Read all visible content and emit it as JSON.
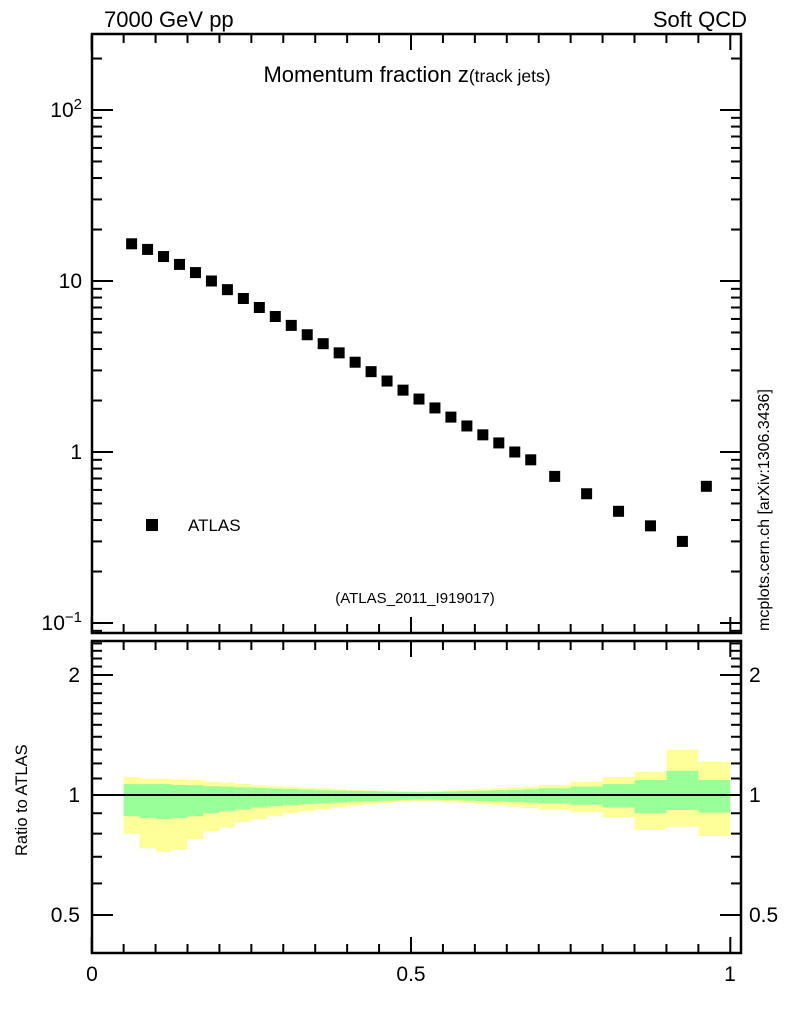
{
  "header": {
    "left": "7000 GeV pp",
    "right": "Soft QCD"
  },
  "title": {
    "main": "Momentum fraction z",
    "paren": "(track jets)"
  },
  "legend": {
    "label": "ATLAS",
    "marker": "filled-square",
    "marker_color": "#000000"
  },
  "annotations": {
    "analysis_id": "(ATLAS_2011_I919017)",
    "watermark": "mcplots.cern.ch [arXiv:1306.3436]"
  },
  "axes": {
    "x": {
      "min": 0,
      "max": 1,
      "tick_values": [
        0,
        0.5,
        1
      ],
      "tick_labels": [
        "0",
        "0.5",
        "1"
      ],
      "minor_step": 0.05
    },
    "main_y": {
      "scale": "log",
      "tick_values": [
        100,
        10,
        1,
        0.1
      ],
      "tick_labels": [
        "10^2",
        "10",
        "1",
        "10^-1"
      ]
    },
    "ratio_y": {
      "scale": "log",
      "title": "Ratio to ATLAS",
      "tick_values": [
        2,
        1,
        0.5
      ],
      "tick_labels": [
        "2",
        "1",
        "0.5"
      ]
    }
  },
  "colors": {
    "background": "#ffffff",
    "frame": "#000000",
    "marker": "#000000",
    "band_outer": "#ffff99",
    "band_inner": "#99ff99",
    "watermark_text": "#8f8f8f",
    "analysis_text": "#b3b3b3"
  },
  "chart_data": [
    {
      "panel": "main",
      "type": "scatter",
      "title": "Momentum fraction z(track jets)",
      "y_scale": "log",
      "xlim": [
        0,
        1.017
      ],
      "ylim": [
        0.087,
        280
      ],
      "series": [
        {
          "name": "ATLAS",
          "marker": "filled-square",
          "color": "#000000",
          "x": [
            0.0625,
            0.0875,
            0.1125,
            0.1375,
            0.1625,
            0.1875,
            0.2125,
            0.2375,
            0.2625,
            0.2875,
            0.3125,
            0.3375,
            0.3625,
            0.3875,
            0.4125,
            0.4375,
            0.4625,
            0.4875,
            0.5125,
            0.5375,
            0.5625,
            0.5875,
            0.6125,
            0.6375,
            0.6625,
            0.6875,
            0.725,
            0.775,
            0.825,
            0.875,
            0.925,
            0.9625
          ],
          "y": [
            16.5,
            15.3,
            13.9,
            12.5,
            11.2,
            10.0,
            8.9,
            7.9,
            7.0,
            6.2,
            5.5,
            4.85,
            4.3,
            3.8,
            3.35,
            2.95,
            2.6,
            2.3,
            2.04,
            1.81,
            1.6,
            1.42,
            1.26,
            1.13,
            1.0,
            0.9,
            0.72,
            0.57,
            0.45,
            0.37,
            0.3,
            0.63
          ]
        }
      ]
    },
    {
      "panel": "ratio",
      "type": "area",
      "ylabel": "Ratio to ATLAS",
      "y_scale": "log",
      "ylim": [
        0.4,
        2.43
      ],
      "reference_line": 1,
      "bin_edges": [
        0.05,
        0.075,
        0.1,
        0.125,
        0.15,
        0.175,
        0.2,
        0.225,
        0.25,
        0.275,
        0.3,
        0.325,
        0.35,
        0.375,
        0.4,
        0.425,
        0.45,
        0.475,
        0.5,
        0.525,
        0.55,
        0.575,
        0.6,
        0.625,
        0.65,
        0.675,
        0.7,
        0.75,
        0.8,
        0.85,
        0.9,
        0.95,
        1.0
      ],
      "bands": {
        "outer": {
          "color": "#ffff99",
          "hi": [
            1.11,
            1.1,
            1.1,
            1.095,
            1.09,
            1.08,
            1.075,
            1.065,
            1.058,
            1.052,
            1.048,
            1.044,
            1.04,
            1.035,
            1.03,
            1.028,
            1.025,
            1.023,
            1.022,
            1.024,
            1.028,
            1.032,
            1.036,
            1.04,
            1.045,
            1.05,
            1.06,
            1.08,
            1.11,
            1.144,
            1.3,
            1.21
          ],
          "lo": [
            0.8,
            0.735,
            0.72,
            0.73,
            0.775,
            0.81,
            0.83,
            0.855,
            0.87,
            0.885,
            0.9,
            0.91,
            0.92,
            0.93,
            0.94,
            0.947,
            0.955,
            0.962,
            0.966,
            0.965,
            0.96,
            0.955,
            0.948,
            0.942,
            0.935,
            0.928,
            0.918,
            0.905,
            0.88,
            0.817,
            0.833,
            0.789
          ]
        },
        "inner": {
          "color": "#99ff99",
          "hi": [
            1.065,
            1.065,
            1.065,
            1.06,
            1.058,
            1.052,
            1.05,
            1.045,
            1.042,
            1.038,
            1.035,
            1.032,
            1.028,
            1.026,
            1.024,
            1.022,
            1.02,
            1.018,
            1.017,
            1.018,
            1.02,
            1.023,
            1.025,
            1.028,
            1.03,
            1.034,
            1.04,
            1.05,
            1.065,
            1.09,
            1.15,
            1.09
          ],
          "lo": [
            0.885,
            0.875,
            0.87,
            0.875,
            0.885,
            0.9,
            0.91,
            0.92,
            0.93,
            0.937,
            0.943,
            0.948,
            0.952,
            0.957,
            0.962,
            0.965,
            0.968,
            0.972,
            0.974,
            0.973,
            0.971,
            0.969,
            0.966,
            0.963,
            0.96,
            0.957,
            0.952,
            0.945,
            0.93,
            0.9,
            0.917,
            0.903
          ]
        }
      }
    }
  ]
}
